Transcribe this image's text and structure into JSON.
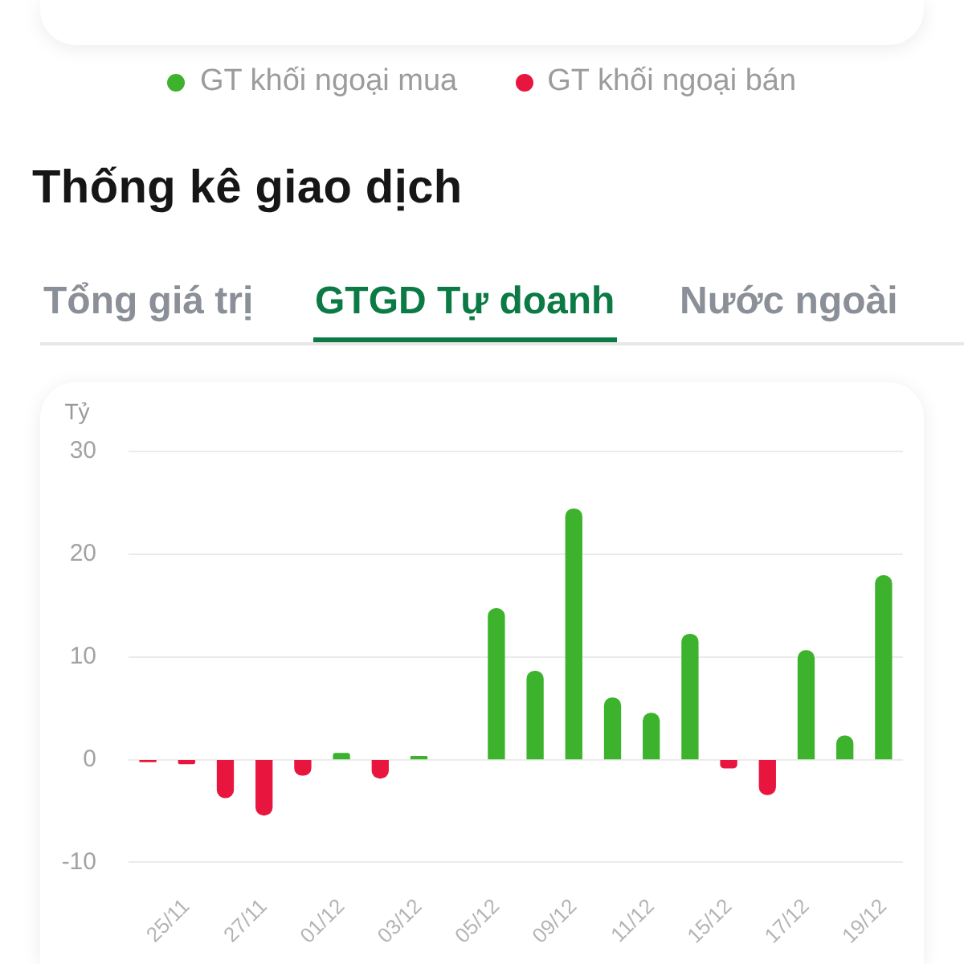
{
  "chart_data": {
    "type": "bar",
    "title": "Thống kê giao dịch",
    "subtitle": "GTGD Tự doanh",
    "annotations": [
      "Tổng giá trị",
      "Nước ngoài"
    ],
    "ylabel": "Tỷ",
    "categories": [
      null,
      "25/11",
      null,
      "27/11",
      null,
      "01/12",
      null,
      "03/12",
      null,
      "05/12",
      null,
      "09/12",
      null,
      "11/12",
      null,
      "15/12",
      null,
      "17/12",
      null,
      "19/12"
    ],
    "series": [
      {
        "name": "GT khối ngoại mua",
        "color": "#3db22c",
        "values": [
          null,
          null,
          null,
          null,
          null,
          0.6,
          null,
          0.3,
          null,
          14.7,
          8.6,
          24.4,
          6.0,
          4.5,
          12.2,
          null,
          null,
          10.6,
          2.3,
          17.9
        ]
      },
      {
        "name": "GT khối ngoại bán",
        "color": "#e8163f",
        "values": [
          -0.2,
          -0.4,
          -3.7,
          -5.4,
          -1.5,
          null,
          -1.8,
          null,
          null,
          null,
          null,
          null,
          null,
          null,
          null,
          -0.8,
          -3.4,
          null,
          null,
          null
        ]
      }
    ],
    "stacked": true,
    "ylim": [
      -10,
      30
    ],
    "yticks": [
      -10,
      0,
      10,
      20,
      30
    ],
    "grid": "y",
    "legend": "top"
  }
}
